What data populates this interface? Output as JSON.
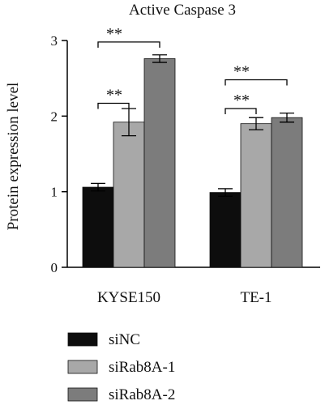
{
  "chart_data": {
    "type": "bar",
    "title": "Active Caspase 3",
    "ylabel": "Protein expression level",
    "xlabel": "",
    "categories": [
      "KYSE150",
      "TE-1"
    ],
    "ylim": [
      0,
      3
    ],
    "yticks": [
      "0",
      "1",
      "2",
      "3"
    ],
    "grid": false,
    "legend_position": "bottom-left",
    "series": [
      {
        "name": "siNC",
        "values": [
          1.06,
          0.99
        ],
        "errors": [
          0.05,
          0.05
        ],
        "color": "#0d0d0d"
      },
      {
        "name": "siRab8A-1",
        "values": [
          1.92,
          1.9
        ],
        "errors": [
          0.18,
          0.08
        ],
        "color": "#a8a8a8"
      },
      {
        "name": "siRab8A-2",
        "values": [
          2.76,
          1.98
        ],
        "errors": [
          0.05,
          0.06
        ],
        "color": "#7c7c7c"
      }
    ],
    "annotations": [
      {
        "text": "**",
        "category": "KYSE150",
        "from_series": 0,
        "to_series": 2,
        "level": 2.98
      },
      {
        "text": "**",
        "category": "KYSE150",
        "from_series": 0,
        "to_series": 1,
        "level": 2.17
      },
      {
        "text": "**",
        "category": "TE-1",
        "from_series": 0,
        "to_series": 2,
        "level": 2.48
      },
      {
        "text": "**",
        "category": "TE-1",
        "from_series": 0,
        "to_series": 1,
        "level": 2.1
      }
    ]
  }
}
